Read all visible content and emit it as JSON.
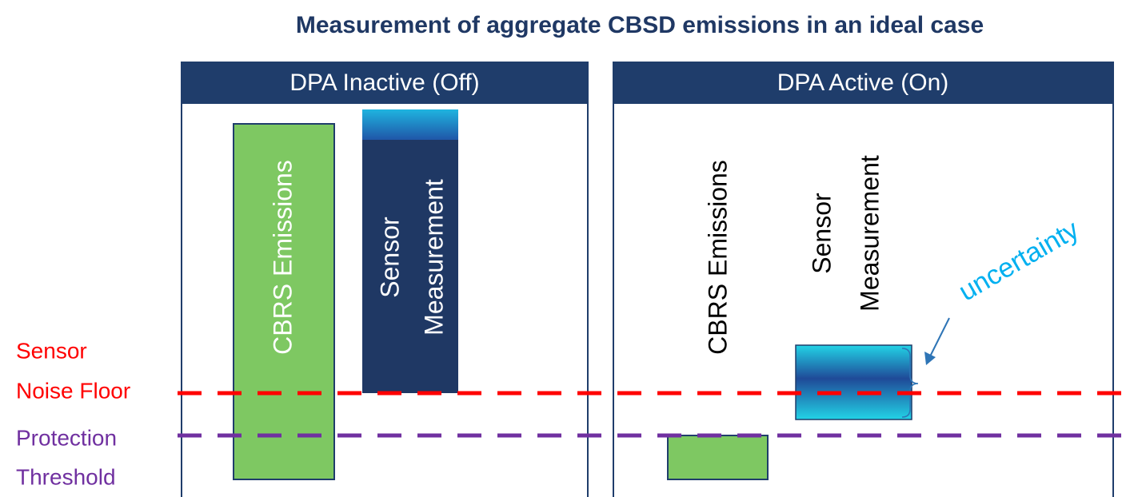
{
  "title": "Measurement of aggregate CBSD emissions in an ideal case",
  "panels": [
    {
      "header": "DPA Inactive (Off)",
      "bars": [
        {
          "label": "CBRS Emissions"
        },
        {
          "label": [
            "Sensor",
            "Measurement"
          ]
        }
      ]
    },
    {
      "header": "DPA Active (On)",
      "bars": [
        {
          "label": "CBRS Emissions"
        },
        {
          "label": [
            "Sensor",
            "Measurement"
          ]
        }
      ]
    }
  ],
  "levels": [
    {
      "label": [
        "Sensor",
        "Noise Floor"
      ]
    },
    {
      "label": [
        "Protection",
        "Threshold"
      ]
    }
  ],
  "annotation": "uncertainty"
}
